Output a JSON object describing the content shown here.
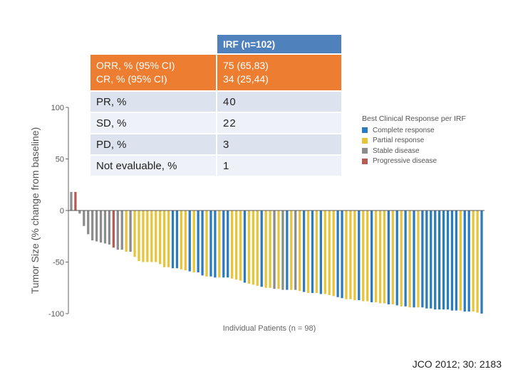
{
  "table": {
    "header": {
      "left": "",
      "right": "IRF (n=102)"
    },
    "highlight_row": {
      "label_line1": "ORR, % (95% CI)",
      "label_line2": "CR, % (95% CI)",
      "value_line1": "75 (65,83)",
      "value_line2": "34 (25,44)"
    },
    "rows": [
      {
        "label": "PR, %",
        "value": "40"
      },
      {
        "label": "SD, %",
        "value": "22"
      },
      {
        "label": "PD, %",
        "value": "3"
      },
      {
        "label": "Not evaluable, %",
        "value": "1"
      }
    ]
  },
  "legend": {
    "title": "Best Clinical Response per IRF",
    "items": [
      {
        "label": "Complete response",
        "color": "#2b7bbf"
      },
      {
        "label": "Partial response",
        "color": "#e8c43a"
      },
      {
        "label": "Stable disease",
        "color": "#8c8c8c"
      },
      {
        "label": "Progressive disease",
        "color": "#b55a55"
      }
    ]
  },
  "citation": "JCO 2012; 30: 2183",
  "chart_data": {
    "type": "bar",
    "ylabel": "Tumor Size (% change from baseline)",
    "xlabel": "Individual Patients (n = 98)",
    "ylim": [
      -100,
      100
    ],
    "yticks": [
      "100",
      "50",
      "0",
      "-50",
      "-100"
    ],
    "ytick_values": [
      100,
      50,
      0,
      -50,
      -100
    ],
    "grid": false,
    "legend_position": "top-right",
    "series_colors": {
      "CR": "#2b7bbf",
      "PR": "#e8c43a",
      "SD": "#8c8c8c",
      "PD": "#b55a55"
    },
    "values": [
      18,
      18,
      -3,
      -15,
      -23,
      -29,
      -30,
      -31,
      -32,
      -33,
      -36,
      -38,
      -38,
      -40,
      -40,
      -45,
      -49,
      -50,
      -50,
      -50,
      -50,
      -52,
      -55,
      -55,
      -56,
      -56,
      -57,
      -58,
      -59,
      -60,
      -60,
      -63,
      -64,
      -64,
      -65,
      -65,
      -65,
      -65,
      -66,
      -67,
      -68,
      -70,
      -71,
      -72,
      -73,
      -74,
      -75,
      -75,
      -76,
      -76,
      -77,
      -77,
      -77,
      -77,
      -78,
      -79,
      -80,
      -80,
      -80,
      -81,
      -81,
      -82,
      -83,
      -84,
      -85,
      -86,
      -86,
      -87,
      -87,
      -88,
      -88,
      -89,
      -89,
      -90,
      -90,
      -91,
      -91,
      -92,
      -93,
      -93,
      -94,
      -94,
      -94,
      -94,
      -95,
      -95,
      -96,
      -96,
      -96,
      -96,
      -97,
      -97,
      -97,
      -98,
      -98,
      -98,
      -99,
      -100
    ],
    "responses": [
      "SD",
      "PD",
      "SD",
      "SD",
      "SD",
      "SD",
      "SD",
      "SD",
      "SD",
      "SD",
      "PD",
      "SD",
      "SD",
      "PR",
      "SD",
      "PR",
      "PR",
      "PR",
      "PR",
      "PR",
      "PR",
      "PR",
      "PR",
      "PR",
      "CR",
      "CR",
      "PR",
      "PR",
      "CR",
      "PR",
      "CR",
      "CR",
      "PR",
      "CR",
      "CR",
      "PR",
      "CR",
      "CR",
      "PR",
      "PR",
      "PR",
      "CR",
      "PR",
      "PR",
      "PR",
      "CR",
      "PR",
      "PR",
      "SD",
      "PR",
      "SD",
      "CR",
      "PR",
      "SD",
      "PR",
      "CR",
      "PR",
      "CR",
      "PR",
      "CR",
      "PR",
      "PR",
      "PR",
      "CR",
      "CR",
      "PR",
      "PR",
      "PR",
      "CR",
      "PR",
      "PR",
      "CR",
      "PR",
      "PR",
      "PR",
      "CR",
      "PR",
      "CR",
      "PR",
      "CR",
      "PR",
      "CR",
      "PR",
      "CR",
      "CR",
      "CR",
      "CR",
      "CR",
      "CR",
      "CR",
      "CR",
      "CR",
      "PR",
      "CR",
      "CR",
      "PR",
      "PR",
      "CR"
    ]
  }
}
